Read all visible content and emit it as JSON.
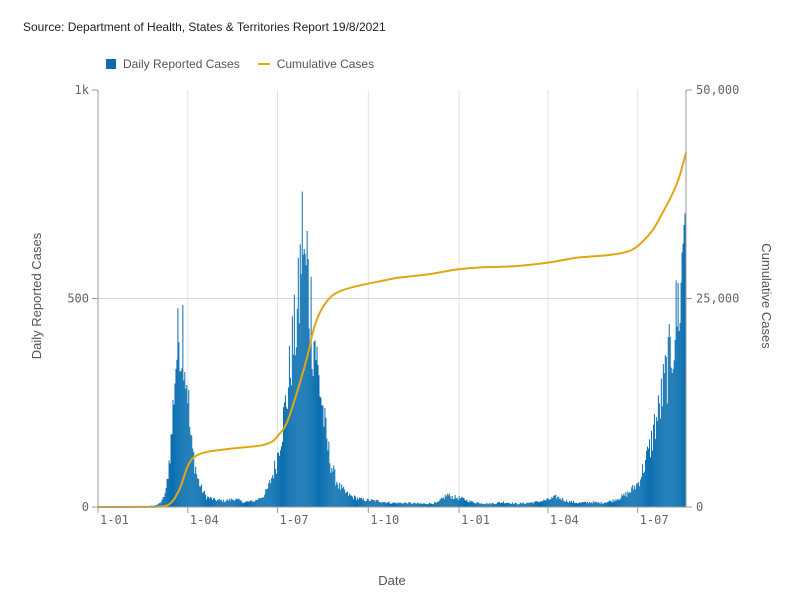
{
  "source_text": "Source: Department of Health, States & Territories Report 19/8/2021",
  "legend": [
    {
      "label": "Daily Reported Cases",
      "kind": "bar",
      "color": "#0a6fb0"
    },
    {
      "label": "Cumulative Cases",
      "kind": "line",
      "color": "#e0a615"
    }
  ],
  "chart_data": {
    "type": "bar+line",
    "title": "",
    "xlabel": "Date",
    "ylabel_left": "Daily Reported Cases",
    "ylabel_right": "Cumulative Cases",
    "x_range": [
      "2020-01-01",
      "2021-08-19"
    ],
    "y_left_range": [
      0,
      1000
    ],
    "y_right_range": [
      0,
      50000
    ],
    "y_left_ticks": [
      {
        "value": 0,
        "label": "0"
      },
      {
        "value": 500,
        "label": "500"
      },
      {
        "value": 1000,
        "label": "1k"
      }
    ],
    "y_right_ticks": [
      {
        "value": 0,
        "label": "0"
      },
      {
        "value": 25000,
        "label": "25,000"
      },
      {
        "value": 50000,
        "label": "50,000"
      }
    ],
    "x_ticks": [
      {
        "date": "2020-01-01",
        "label": "1-01"
      },
      {
        "date": "2020-04-01",
        "label": "1-04"
      },
      {
        "date": "2020-07-01",
        "label": "1-07"
      },
      {
        "date": "2020-10-01",
        "label": "1-10"
      },
      {
        "date": "2021-01-01",
        "label": "1-01"
      },
      {
        "date": "2021-04-01",
        "label": "1-04"
      },
      {
        "date": "2021-07-01",
        "label": "1-07"
      }
    ],
    "grid": "vertical at x ticks, horizontal at 500",
    "legend_position": "top-left",
    "daily_series": {
      "name": "Daily Reported Cases",
      "color": "#0a6fb0",
      "points": [
        [
          "2020-01-25",
          1
        ],
        [
          "2020-02-20",
          2
        ],
        [
          "2020-03-01",
          5
        ],
        [
          "2020-03-06",
          15
        ],
        [
          "2020-03-10",
          40
        ],
        [
          "2020-03-13",
          110
        ],
        [
          "2020-03-16",
          190
        ],
        [
          "2020-03-18",
          290
        ],
        [
          "2020-03-20",
          360
        ],
        [
          "2020-03-22",
          400
        ],
        [
          "2020-03-24",
          445
        ],
        [
          "2020-03-25",
          385
        ],
        [
          "2020-03-27",
          460
        ],
        [
          "2020-03-28",
          420
        ],
        [
          "2020-03-30",
          330
        ],
        [
          "2020-04-01",
          300
        ],
        [
          "2020-04-03",
          200
        ],
        [
          "2020-04-05",
          150
        ],
        [
          "2020-04-08",
          110
        ],
        [
          "2020-04-11",
          70
        ],
        [
          "2020-04-15",
          45
        ],
        [
          "2020-04-20",
          25
        ],
        [
          "2020-04-28",
          18
        ],
        [
          "2020-05-08",
          15
        ],
        [
          "2020-05-18",
          20
        ],
        [
          "2020-05-28",
          12
        ],
        [
          "2020-06-08",
          15
        ],
        [
          "2020-06-18",
          30
        ],
        [
          "2020-06-22",
          50
        ],
        [
          "2020-06-26",
          80
        ],
        [
          "2020-06-30",
          110
        ],
        [
          "2020-07-03",
          160
        ],
        [
          "2020-07-06",
          200
        ],
        [
          "2020-07-09",
          250
        ],
        [
          "2020-07-12",
          300
        ],
        [
          "2020-07-15",
          380
        ],
        [
          "2020-07-18",
          420
        ],
        [
          "2020-07-21",
          470
        ],
        [
          "2020-07-23",
          520
        ],
        [
          "2020-07-25",
          640
        ],
        [
          "2020-07-27",
          700
        ],
        [
          "2020-07-29",
          560
        ],
        [
          "2020-07-31",
          620
        ],
        [
          "2020-08-02",
          500
        ],
        [
          "2020-08-04",
          500
        ],
        [
          "2020-08-06",
          400
        ],
        [
          "2020-08-08",
          420
        ],
        [
          "2020-08-11",
          330
        ],
        [
          "2020-08-14",
          280
        ],
        [
          "2020-08-17",
          220
        ],
        [
          "2020-08-20",
          160
        ],
        [
          "2020-08-24",
          110
        ],
        [
          "2020-08-28",
          75
        ],
        [
          "2020-09-02",
          50
        ],
        [
          "2020-09-08",
          35
        ],
        [
          "2020-09-15",
          25
        ],
        [
          "2020-09-25",
          18
        ],
        [
          "2020-10-10",
          15
        ],
        [
          "2020-10-25",
          10
        ],
        [
          "2020-11-10",
          10
        ],
        [
          "2020-11-25",
          8
        ],
        [
          "2020-12-10",
          10
        ],
        [
          "2020-12-20",
          30
        ],
        [
          "2020-12-25",
          25
        ],
        [
          "2021-01-05",
          20
        ],
        [
          "2021-01-15",
          12
        ],
        [
          "2021-02-01",
          8
        ],
        [
          "2021-02-15",
          12
        ],
        [
          "2021-03-01",
          8
        ],
        [
          "2021-03-20",
          12
        ],
        [
          "2021-04-01",
          18
        ],
        [
          "2021-04-10",
          25
        ],
        [
          "2021-04-20",
          15
        ],
        [
          "2021-05-01",
          10
        ],
        [
          "2021-05-15",
          12
        ],
        [
          "2021-05-25",
          10
        ],
        [
          "2021-06-05",
          15
        ],
        [
          "2021-06-15",
          25
        ],
        [
          "2021-06-22",
          35
        ],
        [
          "2021-06-28",
          50
        ],
        [
          "2021-07-02",
          60
        ],
        [
          "2021-07-06",
          90
        ],
        [
          "2021-07-10",
          120
        ],
        [
          "2021-07-14",
          150
        ],
        [
          "2021-07-18",
          200
        ],
        [
          "2021-07-22",
          230
        ],
        [
          "2021-07-26",
          280
        ],
        [
          "2021-07-30",
          330
        ],
        [
          "2021-08-03",
          370
        ],
        [
          "2021-08-07",
          430
        ],
        [
          "2021-08-11",
          500
        ],
        [
          "2021-08-14",
          520
        ],
        [
          "2021-08-16",
          680
        ],
        [
          "2021-08-18",
          760
        ],
        [
          "2021-08-19",
          690
        ]
      ]
    },
    "cumulative_series": {
      "name": "Cumulative Cases",
      "color": "#e0a615",
      "points": [
        [
          "2020-01-01",
          0
        ],
        [
          "2020-02-15",
          10
        ],
        [
          "2020-03-01",
          30
        ],
        [
          "2020-03-10",
          150
        ],
        [
          "2020-03-15",
          500
        ],
        [
          "2020-03-20",
          1300
        ],
        [
          "2020-03-25",
          2500
        ],
        [
          "2020-03-31",
          4600
        ],
        [
          "2020-04-05",
          5700
        ],
        [
          "2020-04-12",
          6300
        ],
        [
          "2020-04-20",
          6600
        ],
        [
          "2020-05-01",
          6800
        ],
        [
          "2020-05-15",
          7000
        ],
        [
          "2020-06-01",
          7200
        ],
        [
          "2020-06-15",
          7400
        ],
        [
          "2020-06-25",
          7800
        ],
        [
          "2020-07-01",
          8500
        ],
        [
          "2020-07-10",
          10000
        ],
        [
          "2020-07-20",
          13500
        ],
        [
          "2020-07-31",
          18000
        ],
        [
          "2020-08-07",
          21500
        ],
        [
          "2020-08-15",
          23800
        ],
        [
          "2020-08-25",
          25300
        ],
        [
          "2020-09-05",
          26000
        ],
        [
          "2020-09-20",
          26500
        ],
        [
          "2020-10-10",
          27000
        ],
        [
          "2020-11-01",
          27500
        ],
        [
          "2020-12-01",
          27900
        ],
        [
          "2020-12-31",
          28500
        ],
        [
          "2021-01-20",
          28700
        ],
        [
          "2021-03-01",
          28900
        ],
        [
          "2021-04-01",
          29300
        ],
        [
          "2021-05-01",
          29900
        ],
        [
          "2021-06-01",
          30200
        ],
        [
          "2021-06-20",
          30600
        ],
        [
          "2021-07-01",
          31300
        ],
        [
          "2021-07-15",
          33000
        ],
        [
          "2021-07-25",
          35000
        ],
        [
          "2021-08-05",
          37500
        ],
        [
          "2021-08-12",
          39500
        ],
        [
          "2021-08-19",
          42500
        ]
      ]
    }
  }
}
